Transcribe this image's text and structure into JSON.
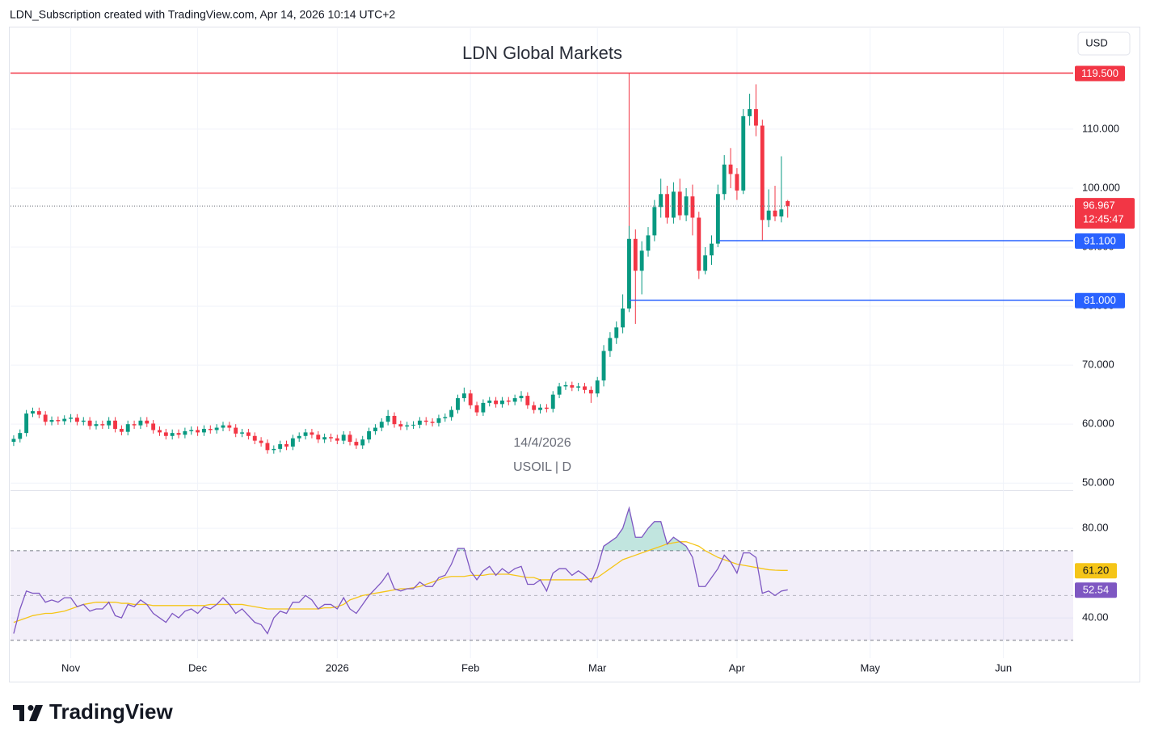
{
  "header": {
    "text": "LDN_Subscription created with TradingView.com, Apr 14, 2026 10:14 UTC+2"
  },
  "footer": {
    "brand": "TradingView"
  },
  "chart_data": {
    "type": "candlestick",
    "title": "LDN Global Markets",
    "currency": "USD",
    "watermark_date": "14/4/2026",
    "symbol": "USOIL | D",
    "xlim": [
      -0.5,
      167
    ],
    "xticks": [
      {
        "value": 9,
        "label": "Nov"
      },
      {
        "value": 29,
        "label": "Dec"
      },
      {
        "value": 51,
        "label": "2026"
      },
      {
        "value": 72,
        "label": "Feb"
      },
      {
        "value": 92,
        "label": "Mar"
      },
      {
        "value": 114,
        "label": "Apr"
      },
      {
        "value": 135,
        "label": "May"
      },
      {
        "value": 156,
        "label": "Jun"
      }
    ],
    "ylim": [
      48.8,
      127.1
    ],
    "yticks": [
      {
        "value": 50,
        "label": "50.000"
      },
      {
        "value": 60,
        "label": "60.000"
      },
      {
        "value": 70,
        "label": "70.000"
      },
      {
        "value": 80,
        "label": "80.000"
      },
      {
        "value": 90,
        "label": "90.000"
      },
      {
        "value": 100,
        "label": "100.000"
      },
      {
        "value": 110,
        "label": "110.000"
      }
    ],
    "grid": true,
    "up_color": "#089981",
    "down_color": "#f23645",
    "open": [
      57.0,
      57.5,
      58.5,
      61.8,
      62.2,
      61.6,
      60.4,
      60.7,
      60.5,
      60.9,
      61.1,
      60.4,
      60.6,
      59.7,
      60.0,
      59.8,
      60.6,
      59.2,
      58.7,
      60.0,
      59.8,
      60.6,
      60.1,
      59.0,
      58.6,
      58.0,
      58.5,
      58.2,
      58.8,
      59.0,
      58.6,
      59.2,
      59.0,
      59.4,
      59.8,
      59.4,
      58.4,
      58.6,
      58.0,
      57.2,
      56.8,
      55.6,
      55.8,
      56.6,
      56.2,
      57.6,
      58.0,
      58.6,
      58.2,
      57.4,
      57.8,
      57.6,
      57.2,
      58.2,
      57.0,
      56.4,
      57.4,
      58.8,
      59.4,
      60.4,
      61.4,
      60.0,
      59.6,
      59.8,
      59.9,
      60.6,
      60.4,
      60.2,
      61.0,
      61.2,
      62.4,
      64.4,
      65.2,
      63.2,
      62.0,
      63.6,
      64.0,
      63.4,
      64.0,
      63.8,
      64.4,
      64.8,
      63.2,
      62.4,
      62.8,
      62.6,
      65.0,
      66.4,
      66.6,
      66.2,
      66.4,
      65.8,
      65.2,
      67.4,
      72.4,
      74.6,
      76.4,
      79.6,
      91.4,
      86.0,
      89.4,
      92.0,
      96.8,
      99.0,
      95.0,
      99.4,
      95.4,
      98.6,
      95.0,
      86.0,
      88.6,
      90.6,
      99.0,
      104.0,
      102.4,
      99.6,
      112.2,
      113.4,
      110.6,
      94.6,
      96.2,
      95.2,
      97.8
    ],
    "high": [
      58.1,
      59.1,
      62.4,
      62.8,
      62.8,
      62.2,
      61.3,
      61.3,
      61.5,
      61.7,
      61.7,
      61.2,
      61.2,
      60.6,
      60.6,
      61.2,
      61.2,
      59.8,
      60.6,
      60.6,
      61.2,
      61.2,
      60.7,
      59.6,
      59.2,
      59.1,
      59.1,
      59.4,
      59.6,
      59.6,
      59.8,
      59.8,
      60.0,
      60.4,
      60.4,
      60.0,
      59.2,
      59.2,
      58.6,
      57.8,
      57.4,
      56.4,
      57.2,
      57.2,
      58.2,
      58.6,
      59.2,
      59.2,
      58.8,
      58.4,
      58.4,
      58.2,
      58.8,
      58.8,
      57.6,
      58.0,
      59.4,
      60.0,
      61.0,
      62.4,
      62.0,
      60.6,
      60.4,
      60.5,
      61.2,
      61.2,
      61.0,
      61.6,
      61.8,
      63.0,
      65.0,
      66.2,
      65.8,
      63.8,
      64.2,
      64.6,
      64.6,
      64.6,
      64.6,
      65.0,
      65.6,
      65.4,
      63.8,
      63.4,
      63.4,
      65.6,
      67.0,
      67.2,
      67.2,
      67.0,
      67.0,
      66.4,
      68.0,
      73.4,
      75.6,
      77.4,
      82.0,
      93.6,
      93.0,
      91.0,
      93.4,
      98.0,
      101.6,
      100.4,
      101.0,
      101.6,
      100.0,
      100.6,
      96.0,
      90.0,
      92.0,
      100.6,
      105.6,
      106.8,
      103.4,
      113.4,
      116.0,
      117.6,
      111.6,
      99.8,
      100.4,
      105.4,
      98.0
    ],
    "low": [
      56.3,
      56.9,
      57.9,
      61.2,
      61.0,
      59.8,
      59.8,
      59.9,
      59.9,
      60.3,
      59.8,
      59.8,
      59.1,
      59.1,
      59.2,
      59.2,
      58.6,
      58.1,
      58.1,
      59.2,
      59.2,
      59.5,
      58.4,
      58.0,
      57.4,
      57.4,
      57.6,
      57.6,
      58.2,
      58.0,
      58.0,
      58.4,
      58.4,
      58.8,
      58.8,
      57.8,
      57.8,
      57.4,
      56.6,
      56.2,
      55.0,
      55.0,
      55.2,
      55.6,
      55.6,
      57.0,
      57.4,
      57.6,
      56.8,
      56.8,
      57.0,
      56.6,
      56.6,
      56.4,
      55.8,
      55.8,
      56.8,
      58.2,
      58.8,
      59.8,
      59.4,
      59.0,
      59.0,
      59.2,
      59.3,
      59.8,
      59.6,
      59.6,
      60.4,
      60.6,
      61.8,
      63.8,
      62.6,
      61.4,
      61.4,
      63.0,
      62.8,
      62.8,
      63.2,
      63.2,
      63.8,
      62.6,
      61.8,
      61.8,
      62.0,
      62.0,
      64.4,
      65.8,
      65.6,
      65.6,
      65.2,
      63.6,
      64.6,
      66.4,
      71.4,
      73.6,
      75.4,
      79.0,
      77.0,
      82.0,
      88.4,
      91.0,
      95.0,
      94.0,
      94.0,
      94.6,
      94.4,
      92.0,
      84.6,
      85.4,
      87.0,
      90.0,
      98.0,
      100.0,
      98.0,
      99.0,
      110.6,
      108.8,
      91.1,
      93.4,
      94.4,
      94.2,
      95.0
    ],
    "close": [
      57.5,
      58.5,
      61.8,
      62.2,
      61.6,
      60.4,
      60.7,
      60.5,
      60.9,
      61.1,
      60.4,
      60.6,
      59.7,
      60.0,
      59.8,
      60.6,
      59.2,
      58.7,
      60.0,
      59.8,
      60.6,
      60.1,
      59.0,
      58.6,
      58.0,
      58.5,
      58.2,
      58.8,
      59.0,
      58.6,
      59.2,
      59.0,
      59.4,
      59.8,
      59.4,
      58.4,
      58.6,
      58.0,
      57.2,
      56.8,
      55.6,
      55.8,
      56.6,
      56.2,
      57.6,
      58.0,
      58.6,
      58.2,
      57.4,
      57.8,
      57.6,
      57.2,
      58.2,
      57.0,
      56.4,
      57.4,
      58.8,
      59.4,
      60.4,
      61.4,
      60.0,
      59.6,
      59.8,
      59.9,
      60.6,
      60.4,
      60.2,
      61.0,
      61.2,
      62.4,
      64.4,
      65.2,
      63.2,
      62.0,
      63.6,
      64.0,
      63.4,
      64.0,
      63.8,
      64.4,
      64.8,
      63.2,
      62.4,
      62.8,
      62.6,
      65.0,
      66.4,
      66.6,
      66.2,
      66.4,
      65.8,
      65.2,
      67.4,
      72.4,
      74.6,
      76.4,
      79.6,
      91.4,
      86.0,
      89.4,
      92.0,
      96.8,
      99.0,
      95.0,
      99.4,
      95.4,
      98.6,
      95.0,
      86.0,
      88.6,
      90.6,
      99.0,
      104.0,
      102.4,
      99.6,
      112.2,
      113.4,
      110.6,
      94.6,
      96.2,
      95.2,
      96.4,
      96.967
    ],
    "last_price": {
      "value": 96.967,
      "label": "96.967",
      "countdown": "12:45:47",
      "color": "#f23645"
    },
    "levels": [
      {
        "value": 119.5,
        "label": "119.500",
        "color": "#f23645"
      },
      {
        "value": 91.1,
        "label": "91.100",
        "color": "#2962ff"
      },
      {
        "value": 81,
        "label": "81.000",
        "color": "#2962ff"
      }
    ],
    "rsi": {
      "type": "line",
      "ylim": [
        22,
        97
      ],
      "yticks": [
        {
          "value": 40,
          "label": "40.00"
        },
        {
          "value": 80,
          "label": "80.00"
        }
      ],
      "bands": [
        70,
        50,
        30
      ],
      "band_color": "#7e57c2",
      "overbought_fill": "#089981",
      "series": [
        {
          "color": "#7e57c2",
          "values": [
            33,
            44,
            52,
            51,
            51,
            47,
            48,
            47,
            49,
            49,
            45,
            46,
            43,
            44,
            44,
            47,
            41,
            40,
            46,
            45,
            48,
            46,
            42,
            40,
            38,
            42,
            40,
            43,
            44,
            42,
            45,
            44,
            46,
            49,
            46,
            42,
            44,
            41,
            38,
            37,
            33,
            40,
            43,
            42,
            47,
            47,
            50,
            48,
            44,
            46,
            46,
            44,
            49,
            44,
            42,
            46,
            50,
            53,
            56,
            60,
            53,
            52,
            53,
            53,
            56,
            54,
            54,
            58,
            59,
            64,
            71,
            71,
            61,
            57,
            61,
            63,
            59,
            62,
            60,
            62,
            63,
            55,
            55,
            57,
            52,
            60,
            62,
            62,
            59,
            61,
            59,
            56,
            62,
            72,
            74,
            76,
            80,
            89,
            76,
            76,
            80,
            83,
            83,
            73,
            76,
            74,
            72,
            67,
            54,
            54,
            58,
            62,
            68,
            65,
            60,
            69,
            69,
            67,
            51,
            52,
            50,
            52,
            52.54
          ],
          "last_label": "52.54"
        },
        {
          "color": "#f5c518",
          "values": [
            38,
            39,
            40,
            41,
            41.5,
            42,
            42,
            42.5,
            43,
            44,
            45,
            46,
            46.5,
            47,
            47,
            47,
            47,
            46.5,
            46.5,
            46,
            46,
            46,
            45.5,
            45.5,
            45.5,
            45.5,
            45.5,
            45.5,
            45.5,
            45.5,
            45.5,
            46,
            46,
            46,
            46,
            46,
            46,
            45.5,
            45,
            44.5,
            44,
            44,
            44,
            44,
            44,
            44,
            44,
            44,
            44,
            44.5,
            44.5,
            45,
            46,
            48,
            49,
            50,
            50.5,
            51,
            51.5,
            52,
            52.5,
            53,
            53,
            53.5,
            54,
            55,
            56,
            57,
            58,
            58.5,
            58.5,
            58.5,
            59,
            59,
            59,
            59.5,
            59.5,
            59.5,
            59.5,
            59,
            58.5,
            58,
            58,
            57,
            57,
            57,
            57,
            57,
            57,
            57,
            57,
            57.5,
            58,
            60,
            62,
            64,
            66,
            67,
            68,
            69,
            70,
            71,
            72,
            73,
            73.5,
            74,
            74,
            73,
            72,
            70,
            68.5,
            67,
            66,
            65,
            64,
            63.5,
            63,
            62.5,
            62,
            61.5,
            61.3,
            61.2,
            61.2
          ],
          "last_label": "61.20"
        }
      ]
    }
  }
}
